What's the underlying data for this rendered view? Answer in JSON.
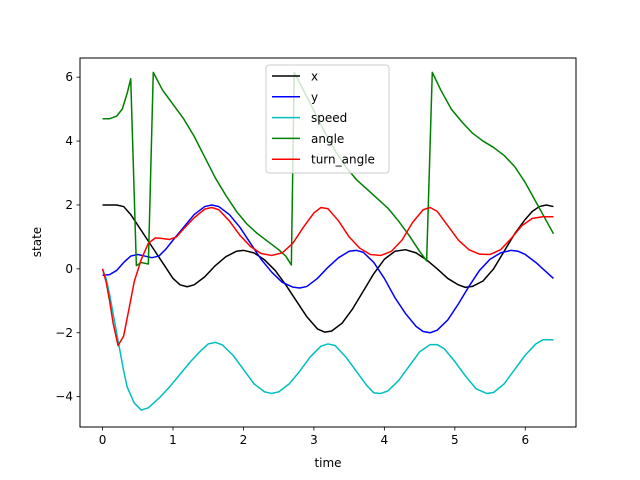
{
  "chart_data": {
    "type": "line",
    "title": "",
    "xlabel": "time",
    "ylabel": "state",
    "xlim": [
      -0.32,
      6.72
    ],
    "ylim": [
      -4.95,
      6.6
    ],
    "xticks": [
      0,
      1,
      2,
      3,
      4,
      5,
      6
    ],
    "yticks": [
      -4,
      -2,
      0,
      2,
      4,
      6
    ],
    "ytick_labels": [
      "−4",
      "−2",
      "0",
      "2",
      "4",
      "6"
    ],
    "grid": false,
    "legend_position": "top-center",
    "series": [
      {
        "name": "x",
        "color": "#000000",
        "points": [
          [
            0,
            2.0
          ],
          [
            0.2,
            2.0
          ],
          [
            0.3,
            1.95
          ],
          [
            0.4,
            1.7
          ],
          [
            0.55,
            1.2
          ],
          [
            0.7,
            0.7
          ],
          [
            0.85,
            0.2
          ],
          [
            1.0,
            -0.3
          ],
          [
            1.1,
            -0.5
          ],
          [
            1.2,
            -0.56
          ],
          [
            1.3,
            -0.5
          ],
          [
            1.45,
            -0.25
          ],
          [
            1.6,
            0.1
          ],
          [
            1.75,
            0.38
          ],
          [
            1.9,
            0.55
          ],
          [
            2.0,
            0.58
          ],
          [
            2.15,
            0.5
          ],
          [
            2.3,
            0.28
          ],
          [
            2.45,
            -0.05
          ],
          [
            2.6,
            -0.5
          ],
          [
            2.75,
            -1.0
          ],
          [
            2.9,
            -1.5
          ],
          [
            3.05,
            -1.88
          ],
          [
            3.15,
            -1.98
          ],
          [
            3.25,
            -1.95
          ],
          [
            3.4,
            -1.7
          ],
          [
            3.55,
            -1.25
          ],
          [
            3.7,
            -0.7
          ],
          [
            3.85,
            -0.15
          ],
          [
            4.0,
            0.3
          ],
          [
            4.15,
            0.55
          ],
          [
            4.3,
            0.6
          ],
          [
            4.45,
            0.5
          ],
          [
            4.6,
            0.28
          ],
          [
            4.75,
            0.0
          ],
          [
            4.9,
            -0.3
          ],
          [
            5.05,
            -0.5
          ],
          [
            5.15,
            -0.58
          ],
          [
            5.25,
            -0.55
          ],
          [
            5.4,
            -0.38
          ],
          [
            5.55,
            0.0
          ],
          [
            5.7,
            0.55
          ],
          [
            5.85,
            1.1
          ],
          [
            6.0,
            1.55
          ],
          [
            6.1,
            1.8
          ],
          [
            6.2,
            1.95
          ],
          [
            6.3,
            2.0
          ],
          [
            6.4,
            1.95
          ]
        ]
      },
      {
        "name": "y",
        "color": "#0000ff",
        "points": [
          [
            0,
            -0.2
          ],
          [
            0.1,
            -0.18
          ],
          [
            0.2,
            -0.05
          ],
          [
            0.3,
            0.2
          ],
          [
            0.4,
            0.4
          ],
          [
            0.5,
            0.45
          ],
          [
            0.6,
            0.4
          ],
          [
            0.7,
            0.35
          ],
          [
            0.8,
            0.4
          ],
          [
            0.9,
            0.62
          ],
          [
            1.0,
            0.9
          ],
          [
            1.15,
            1.3
          ],
          [
            1.3,
            1.7
          ],
          [
            1.45,
            1.95
          ],
          [
            1.55,
            2.0
          ],
          [
            1.65,
            1.95
          ],
          [
            1.8,
            1.7
          ],
          [
            1.95,
            1.3
          ],
          [
            2.1,
            0.8
          ],
          [
            2.25,
            0.3
          ],
          [
            2.4,
            -0.1
          ],
          [
            2.55,
            -0.42
          ],
          [
            2.7,
            -0.57
          ],
          [
            2.8,
            -0.6
          ],
          [
            2.9,
            -0.55
          ],
          [
            3.05,
            -0.3
          ],
          [
            3.2,
            0.05
          ],
          [
            3.35,
            0.35
          ],
          [
            3.5,
            0.55
          ],
          [
            3.6,
            0.58
          ],
          [
            3.7,
            0.52
          ],
          [
            3.85,
            0.2
          ],
          [
            4.0,
            -0.3
          ],
          [
            4.15,
            -0.9
          ],
          [
            4.3,
            -1.4
          ],
          [
            4.45,
            -1.8
          ],
          [
            4.55,
            -1.96
          ],
          [
            4.65,
            -2.0
          ],
          [
            4.75,
            -1.92
          ],
          [
            4.9,
            -1.6
          ],
          [
            5.05,
            -1.1
          ],
          [
            5.2,
            -0.55
          ],
          [
            5.35,
            -0.05
          ],
          [
            5.5,
            0.3
          ],
          [
            5.65,
            0.5
          ],
          [
            5.8,
            0.58
          ],
          [
            5.9,
            0.55
          ],
          [
            6.0,
            0.45
          ],
          [
            6.15,
            0.2
          ],
          [
            6.3,
            -0.1
          ],
          [
            6.4,
            -0.3
          ]
        ]
      },
      {
        "name": "speed",
        "color": "#00bfbf",
        "points": [
          [
            0,
            0
          ],
          [
            0.05,
            -0.3
          ],
          [
            0.1,
            -0.8
          ],
          [
            0.15,
            -1.4
          ],
          [
            0.2,
            -2.0
          ],
          [
            0.25,
            -2.6
          ],
          [
            0.3,
            -3.2
          ],
          [
            0.35,
            -3.7
          ],
          [
            0.45,
            -4.2
          ],
          [
            0.55,
            -4.42
          ],
          [
            0.65,
            -4.35
          ],
          [
            0.8,
            -4.05
          ],
          [
            0.95,
            -3.7
          ],
          [
            1.1,
            -3.3
          ],
          [
            1.25,
            -2.9
          ],
          [
            1.4,
            -2.55
          ],
          [
            1.5,
            -2.35
          ],
          [
            1.6,
            -2.3
          ],
          [
            1.7,
            -2.38
          ],
          [
            1.85,
            -2.7
          ],
          [
            2.0,
            -3.15
          ],
          [
            2.15,
            -3.6
          ],
          [
            2.3,
            -3.85
          ],
          [
            2.4,
            -3.9
          ],
          [
            2.5,
            -3.85
          ],
          [
            2.65,
            -3.6
          ],
          [
            2.8,
            -3.2
          ],
          [
            2.95,
            -2.75
          ],
          [
            3.1,
            -2.42
          ],
          [
            3.2,
            -2.35
          ],
          [
            3.3,
            -2.4
          ],
          [
            3.45,
            -2.75
          ],
          [
            3.6,
            -3.2
          ],
          [
            3.75,
            -3.65
          ],
          [
            3.85,
            -3.88
          ],
          [
            3.95,
            -3.9
          ],
          [
            4.05,
            -3.82
          ],
          [
            4.2,
            -3.5
          ],
          [
            4.35,
            -3.05
          ],
          [
            4.5,
            -2.6
          ],
          [
            4.65,
            -2.37
          ],
          [
            4.75,
            -2.37
          ],
          [
            4.85,
            -2.5
          ],
          [
            5.0,
            -2.9
          ],
          [
            5.15,
            -3.35
          ],
          [
            5.3,
            -3.75
          ],
          [
            5.45,
            -3.9
          ],
          [
            5.55,
            -3.87
          ],
          [
            5.7,
            -3.6
          ],
          [
            5.85,
            -3.15
          ],
          [
            6.0,
            -2.7
          ],
          [
            6.15,
            -2.35
          ],
          [
            6.25,
            -2.22
          ],
          [
            6.4,
            -2.22
          ]
        ]
      },
      {
        "name": "angle",
        "color": "#008000",
        "points": [
          [
            0,
            4.7
          ],
          [
            0.1,
            4.7
          ],
          [
            0.2,
            4.78
          ],
          [
            0.28,
            5.0
          ],
          [
            0.35,
            5.5
          ],
          [
            0.4,
            5.95
          ],
          [
            0.48,
            0.1
          ],
          [
            0.55,
            0.2
          ],
          [
            0.65,
            0.15
          ],
          [
            0.72,
            6.15
          ],
          [
            0.85,
            5.6
          ],
          [
            1.0,
            5.15
          ],
          [
            1.15,
            4.7
          ],
          [
            1.3,
            4.15
          ],
          [
            1.45,
            3.5
          ],
          [
            1.6,
            2.85
          ],
          [
            1.75,
            2.3
          ],
          [
            1.9,
            1.8
          ],
          [
            2.05,
            1.4
          ],
          [
            2.2,
            1.1
          ],
          [
            2.35,
            0.85
          ],
          [
            2.5,
            0.6
          ],
          [
            2.6,
            0.4
          ],
          [
            2.68,
            0.12
          ],
          [
            2.72,
            6.15
          ],
          [
            2.85,
            5.6
          ],
          [
            3.0,
            4.95
          ],
          [
            3.15,
            4.3
          ],
          [
            3.3,
            3.7
          ],
          [
            3.45,
            3.2
          ],
          [
            3.6,
            2.8
          ],
          [
            3.75,
            2.5
          ],
          [
            3.9,
            2.2
          ],
          [
            4.05,
            1.9
          ],
          [
            4.2,
            1.5
          ],
          [
            4.35,
            1.05
          ],
          [
            4.5,
            0.55
          ],
          [
            4.6,
            0.25
          ],
          [
            4.68,
            6.15
          ],
          [
            4.8,
            5.6
          ],
          [
            4.95,
            5.0
          ],
          [
            5.1,
            4.6
          ],
          [
            5.25,
            4.25
          ],
          [
            5.4,
            4.0
          ],
          [
            5.55,
            3.8
          ],
          [
            5.7,
            3.55
          ],
          [
            5.85,
            3.2
          ],
          [
            6.0,
            2.7
          ],
          [
            6.15,
            2.1
          ],
          [
            6.3,
            1.5
          ],
          [
            6.4,
            1.1
          ]
        ]
      },
      {
        "name": "turn_angle",
        "color": "#ff0000",
        "points": [
          [
            0,
            0
          ],
          [
            0.05,
            -0.4
          ],
          [
            0.1,
            -1.0
          ],
          [
            0.15,
            -1.7
          ],
          [
            0.22,
            -2.4
          ],
          [
            0.3,
            -2.1
          ],
          [
            0.38,
            -1.2
          ],
          [
            0.45,
            -0.4
          ],
          [
            0.55,
            0.3
          ],
          [
            0.65,
            0.8
          ],
          [
            0.75,
            0.97
          ],
          [
            0.85,
            0.95
          ],
          [
            0.95,
            0.92
          ],
          [
            1.05,
            1.0
          ],
          [
            1.15,
            1.25
          ],
          [
            1.3,
            1.6
          ],
          [
            1.45,
            1.87
          ],
          [
            1.55,
            1.92
          ],
          [
            1.65,
            1.85
          ],
          [
            1.8,
            1.5
          ],
          [
            1.95,
            1.05
          ],
          [
            2.1,
            0.7
          ],
          [
            2.25,
            0.48
          ],
          [
            2.4,
            0.42
          ],
          [
            2.55,
            0.5
          ],
          [
            2.7,
            0.8
          ],
          [
            2.85,
            1.3
          ],
          [
            3.0,
            1.75
          ],
          [
            3.1,
            1.92
          ],
          [
            3.2,
            1.88
          ],
          [
            3.35,
            1.5
          ],
          [
            3.5,
            1.0
          ],
          [
            3.65,
            0.65
          ],
          [
            3.8,
            0.45
          ],
          [
            3.95,
            0.42
          ],
          [
            4.1,
            0.55
          ],
          [
            4.25,
            0.9
          ],
          [
            4.4,
            1.45
          ],
          [
            4.55,
            1.85
          ],
          [
            4.65,
            1.92
          ],
          [
            4.75,
            1.8
          ],
          [
            4.9,
            1.35
          ],
          [
            5.05,
            0.9
          ],
          [
            5.2,
            0.6
          ],
          [
            5.35,
            0.46
          ],
          [
            5.5,
            0.45
          ],
          [
            5.65,
            0.6
          ],
          [
            5.8,
            0.95
          ],
          [
            5.95,
            1.35
          ],
          [
            6.1,
            1.58
          ],
          [
            6.25,
            1.63
          ],
          [
            6.4,
            1.63
          ]
        ]
      }
    ]
  }
}
